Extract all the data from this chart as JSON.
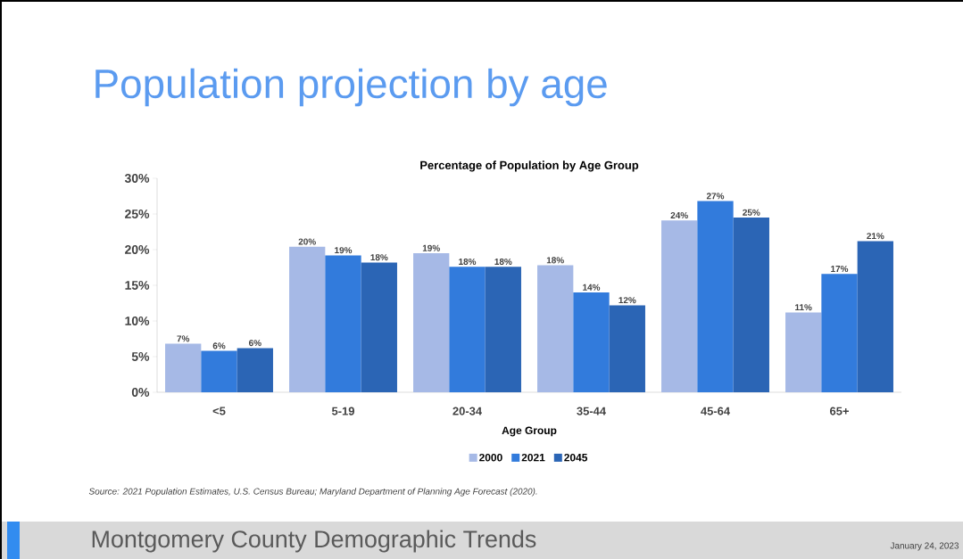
{
  "chart_data": {
    "type": "bar",
    "title": "Population projection by age",
    "subtitle": "Percentage of Population by Age Group",
    "xlabel": "Age Group",
    "categories": [
      "<5",
      "5-19",
      "20-34",
      "35-44",
      "45-64",
      "65+"
    ],
    "series": [
      {
        "name": "2000",
        "color": "#a6b9e6",
        "values": [
          6.8,
          20.4,
          19.5,
          17.8,
          24.1,
          11.2
        ],
        "value_labels": [
          "7%",
          "20%",
          "19%",
          "18%",
          "24%",
          "11%"
        ]
      },
      {
        "name": "2021",
        "color": "#327bdc",
        "values": [
          5.8,
          19.2,
          17.6,
          14.0,
          26.8,
          16.6
        ],
        "value_labels": [
          "6%",
          "19%",
          "18%",
          "14%",
          "27%",
          "17%"
        ]
      },
      {
        "name": "2045",
        "color": "#2b65b5",
        "values": [
          6.2,
          18.2,
          17.6,
          12.2,
          24.5,
          21.2
        ],
        "value_labels": [
          "6%",
          "18%",
          "18%",
          "12%",
          "25%",
          "21%"
        ]
      }
    ],
    "ylim": [
      0,
      30
    ],
    "yticks": [
      {
        "value": 0,
        "label": "0%"
      },
      {
        "value": 5,
        "label": "5%"
      },
      {
        "value": 10,
        "label": "10%"
      },
      {
        "value": 15,
        "label": "15%"
      },
      {
        "value": 20,
        "label": "20%"
      },
      {
        "value": 25,
        "label": "25%"
      },
      {
        "value": 30,
        "label": "30%"
      }
    ],
    "legend": "bottom",
    "annotations": [
      "Source: 2021 Population Estimates, U.S. Census Bureau; Maryland Department of Planning Age Forecast (2020).",
      "Montgomery County Demographic Trends",
      "January 24, 2023"
    ]
  }
}
